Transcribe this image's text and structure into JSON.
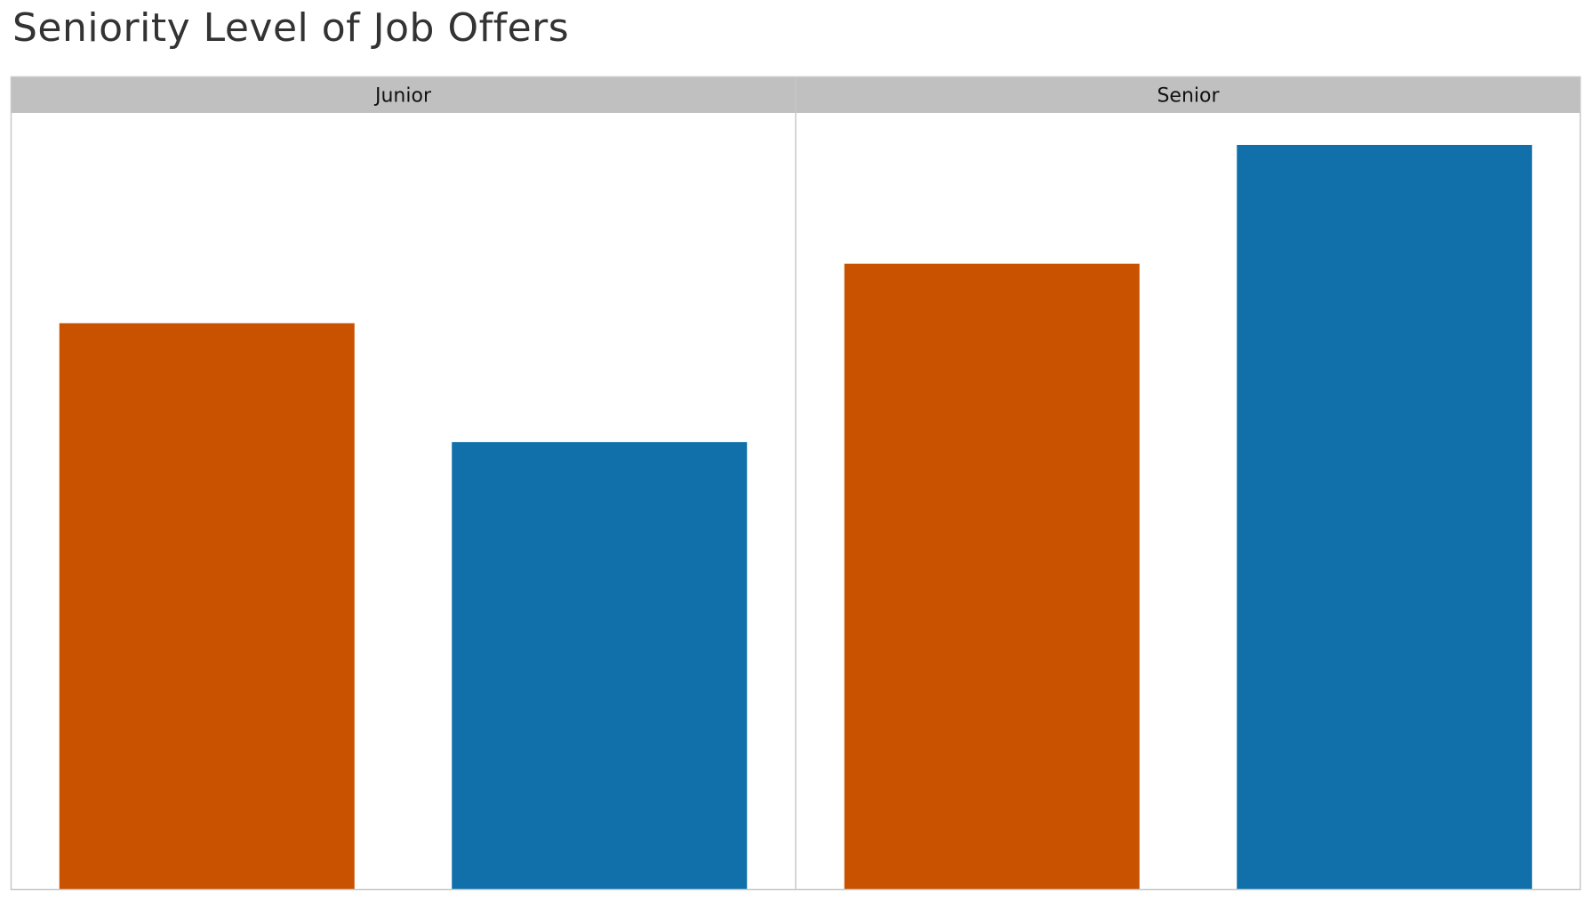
{
  "chart_data": {
    "type": "bar",
    "title": "Seniority Level of Job Offers",
    "panels": [
      {
        "name": "Junior",
        "bars": [
          {
            "value": 62,
            "color": "#C85200"
          },
          {
            "value": 49,
            "color": "#1170AA"
          }
        ]
      },
      {
        "name": "Senior",
        "bars": [
          {
            "value": 68.5,
            "color": "#C85200"
          },
          {
            "value": 81.5,
            "color": "#1170AA"
          }
        ]
      }
    ],
    "ylim": [
      0,
      85
    ],
    "xlabel": "",
    "ylabel": "",
    "grid": false,
    "legend": "none"
  },
  "colors": {
    "orange": "#C85200",
    "blue": "#1170AA",
    "header_bg": "#C0C0C0",
    "border": "#C8C8C8"
  }
}
